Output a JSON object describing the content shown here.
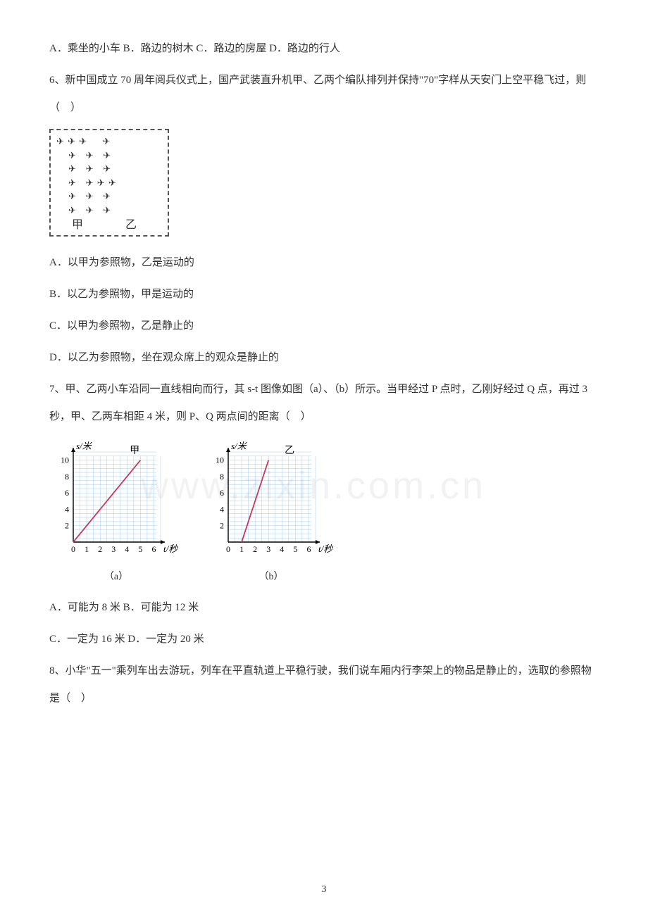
{
  "watermark": "www.zixin.com.cn",
  "page_number": "3",
  "q5_options": "A．乘坐的小车 B．路边的树木 C．路边的房屋 D．路边的行人",
  "q6_stem": "6、新中国成立 70 周年阅兵仪式上，国产武装直升机甲、乙两个编队排列并保持\"70\"字样从天安门上空平稳飞过，则（　）",
  "heli_diagram": {
    "rows": [
      "✈ ✈ ✈     ✈",
      "    ✈   ✈   ✈",
      "    ✈   ✈   ✈",
      "    ✈   ✈ ✈ ✈",
      "    ✈   ✈   ✈",
      "    ✈   ✈   ✈"
    ],
    "label_left": "甲",
    "label_right": "乙"
  },
  "q6_options": {
    "A": "A．以甲为参照物，乙是运动的",
    "B": "B．以乙为参照物，甲是运动的",
    "C": "C．以甲为参照物，乙是静止的",
    "D": "D．以乙为参照物，坐在观众席上的观众是静止的"
  },
  "q7_stem": "7、甲、乙两小车沿同一直线相向而行，其 s-t 图像如图（a）、（b）所示。当甲经过 P 点时，乙刚好经过 Q 点，再过 3 秒，甲、乙两车相距 4 米，则 P、Q 两点间的距离（　）",
  "charts": {
    "width": 190,
    "height": 170,
    "grid_color": "#7fb8e6",
    "axis_color": "#000000",
    "line_color": "#c8385a",
    "bg_color": "#ffffff",
    "y_label": "s/米",
    "x_label": "t/秒",
    "y_ticks": [
      2,
      4,
      6,
      8,
      10
    ],
    "x_ticks": [
      0,
      1,
      2,
      3,
      4,
      5,
      6
    ],
    "y_max": 11,
    "x_max": 6.5,
    "a": {
      "caption": "（a）",
      "series_label": "甲",
      "points": [
        [
          0,
          0
        ],
        [
          5,
          10
        ]
      ]
    },
    "b": {
      "caption": "（b）",
      "series_label": "乙",
      "points": [
        [
          1,
          0
        ],
        [
          3,
          10
        ]
      ]
    }
  },
  "q7_options_line1": "A．可能为 8 米 B．可能为 12 米",
  "q7_options_line2": "C．一定为 16 米 D．一定为 20 米",
  "q8_stem": "8、小华\"五一\"乘列车出去游玩，列车在平直轨道上平稳行驶，我们说车厢内行李架上的物品是静止的，选取的参照物是（　）"
}
